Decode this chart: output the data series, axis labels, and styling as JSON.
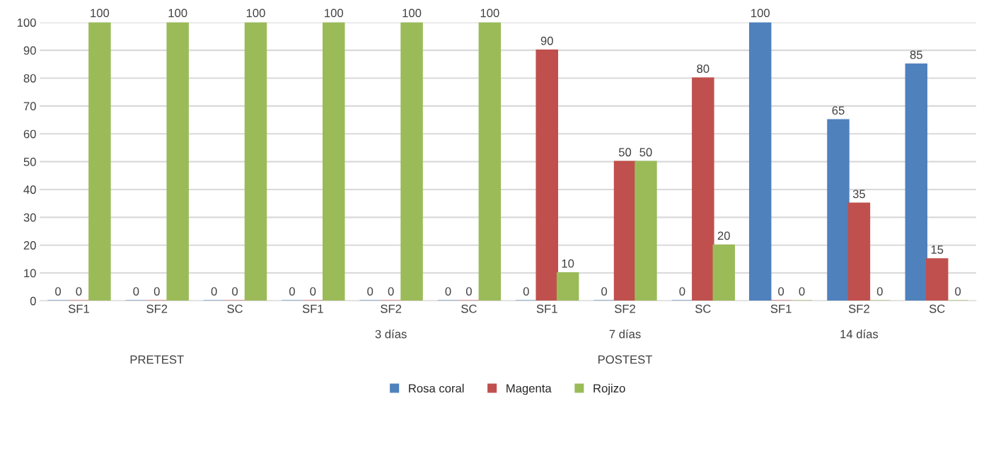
{
  "chart_data": {
    "type": "bar",
    "categories": [
      "SF1",
      "SF2\n\n\n\nPRETEST",
      "SC",
      "SF1",
      "SF2\n\n3 días",
      "SC",
      "SF1",
      "SF2\n\n7 días\n\nPOSTEST",
      "SC",
      "SF1",
      "SF2\n\n14 días",
      "SC"
    ],
    "series": [
      {
        "name": "Rosa coral",
        "color": "#4f81bd",
        "values": [
          0,
          0,
          0,
          0,
          0,
          0,
          0,
          0,
          0,
          100,
          65,
          85
        ]
      },
      {
        "name": "Magenta",
        "color": "#c0504d",
        "values": [
          0,
          0,
          0,
          0,
          0,
          0,
          90,
          50,
          80,
          0,
          35,
          15
        ]
      },
      {
        "name": "Rojizo",
        "color": "#9bbb59",
        "values": [
          100,
          100,
          100,
          100,
          100,
          100,
          10,
          50,
          20,
          0,
          0,
          0
        ]
      }
    ],
    "ylim": [
      0,
      100
    ],
    "yticks": [
      0,
      10,
      20,
      30,
      40,
      50,
      60,
      70,
      80,
      90,
      100
    ],
    "grid": "y",
    "legend": "bottom",
    "data_labels": true
  }
}
